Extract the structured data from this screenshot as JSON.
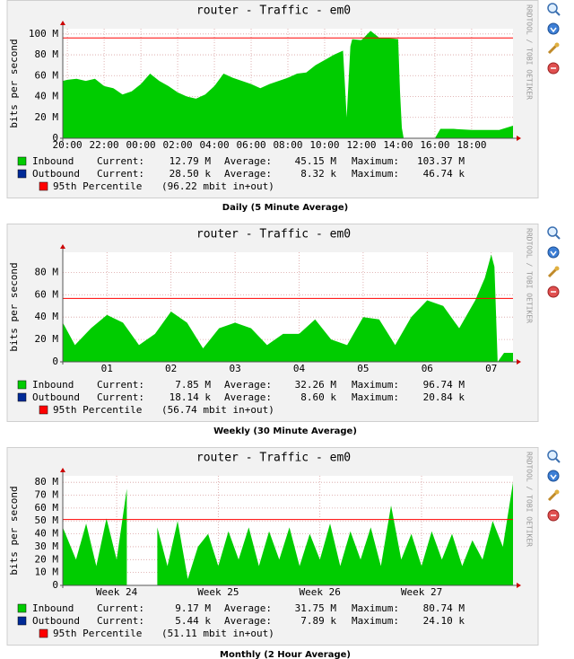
{
  "chart_data": [
    {
      "type": "area",
      "title": "router - Traffic - em0",
      "y_label": "bits per second",
      "watermark": "RRDTOOL / TOBI OETIKER",
      "caption": "Daily (5 Minute Average)",
      "stat_labels": [
        "Current:",
        "Average:",
        "Maximum:"
      ],
      "x": [
        19.75,
        20,
        20.5,
        21,
        21.5,
        22,
        22.5,
        23,
        23.5,
        24,
        24.5,
        25,
        25.5,
        26,
        26.5,
        27,
        27.5,
        28,
        28.5,
        29,
        29.5,
        30,
        30.5,
        31,
        31.5,
        32,
        32.5,
        33,
        33.5,
        34,
        34.5,
        35,
        35.2,
        35.4,
        35.5,
        36,
        36.5,
        37,
        37.5,
        38,
        38.1,
        38.2,
        38.3,
        38.5,
        39,
        40,
        40.3,
        41,
        42,
        43,
        43.5,
        44.25
      ],
      "xlim": [
        19.75,
        44.25
      ],
      "xticks": [
        {
          "value": 20,
          "label": "20:00"
        },
        {
          "value": 22,
          "label": "22:00"
        },
        {
          "value": 24,
          "label": "00:00"
        },
        {
          "value": 26,
          "label": "02:00"
        },
        {
          "value": 28,
          "label": "04:00"
        },
        {
          "value": 30,
          "label": "06:00"
        },
        {
          "value": 32,
          "label": "08:00"
        },
        {
          "value": 34,
          "label": "10:00"
        },
        {
          "value": 36,
          "label": "12:00"
        },
        {
          "value": 38,
          "label": "14:00"
        },
        {
          "value": 40,
          "label": "16:00"
        },
        {
          "value": 42,
          "label": "18:00"
        }
      ],
      "ylim": [
        0,
        105000000
      ],
      "yticks": [
        0,
        {
          "value": 20000000,
          "label": "20 M"
        },
        {
          "value": 40000000,
          "label": "40 M"
        },
        {
          "value": 60000000,
          "label": "60 M"
        },
        {
          "value": 80000000,
          "label": "80 M"
        },
        {
          "value": 100000000,
          "label": "100 M"
        }
      ],
      "grid": true,
      "series": [
        {
          "name": "Inbound",
          "color": "#00cc00",
          "style": "area",
          "stats": [
            "12.79 M",
            "45.15 M",
            "103.37 M"
          ],
          "values": [
            55000000,
            56000000,
            57000000,
            55000000,
            57000000,
            50000000,
            48000000,
            42000000,
            45000000,
            52000000,
            62000000,
            55000000,
            50000000,
            44000000,
            40000000,
            38000000,
            42000000,
            50000000,
            62000000,
            58000000,
            55000000,
            52000000,
            48000000,
            52000000,
            55000000,
            58000000,
            62000000,
            63000000,
            70000000,
            75000000,
            80000000,
            84000000,
            20000000,
            88000000,
            95000000,
            94000000,
            103000000,
            96000000,
            96000000,
            95000000,
            45000000,
            10000000,
            0,
            0,
            0,
            0,
            9000000,
            9000000,
            8000000,
            8000000,
            8000000,
            12000000
          ]
        },
        {
          "name": "Outbound",
          "color": "#002a97",
          "style": "line",
          "stats": [
            "28.50 k",
            "8.32 k",
            "46.74 k"
          ],
          "values": [
            7000,
            7000,
            7000,
            7000,
            7000,
            7000,
            6000,
            6000,
            6000,
            6000,
            6000,
            6000,
            6000,
            5000,
            5000,
            5000,
            5000,
            6000,
            7000,
            7000,
            7000,
            8000,
            8000,
            8000,
            9000,
            9000,
            10000,
            10000,
            11000,
            12000,
            12000,
            13000,
            5000,
            13000,
            14000,
            14000,
            15000,
            15000,
            15000,
            14000,
            8000,
            3000,
            0,
            0,
            0,
            0,
            20000,
            25000,
            28000,
            30000,
            46000,
            28500
          ]
        }
      ],
      "percentile": {
        "name": "95th Percentile",
        "label": "(96.22 mbit in+out)",
        "value": 96220000,
        "color": "#ff0000"
      }
    },
    {
      "type": "area",
      "title": "router - Traffic - em0",
      "y_label": "bits per second",
      "watermark": "RRDTOOL / TOBI OETIKER",
      "caption": "Weekly (30 Minute Average)",
      "stat_labels": [
        "Current:",
        "Average:",
        "Maximum:"
      ],
      "x": [
        0.31,
        0.5,
        0.75,
        1,
        1.25,
        1.5,
        1.75,
        2,
        2.25,
        2.5,
        2.75,
        3,
        3.25,
        3.5,
        3.75,
        4,
        4.25,
        4.5,
        4.75,
        5,
        5.25,
        5.5,
        5.75,
        6,
        6.25,
        6.5,
        6.75,
        6.9,
        7,
        7.05,
        7.1,
        7.2,
        7.34
      ],
      "xlim": [
        0.31,
        7.34
      ],
      "xticks": [
        {
          "value": 1,
          "label": "01"
        },
        {
          "value": 2,
          "label": "02"
        },
        {
          "value": 3,
          "label": "03"
        },
        {
          "value": 4,
          "label": "04"
        },
        {
          "value": 5,
          "label": "05"
        },
        {
          "value": 6,
          "label": "06"
        },
        {
          "value": 7,
          "label": "07"
        }
      ],
      "ylim": [
        0,
        98000000
      ],
      "yticks": [
        0,
        {
          "value": 20000000,
          "label": "20 M"
        },
        {
          "value": 40000000,
          "label": "40 M"
        },
        {
          "value": 60000000,
          "label": "60 M"
        },
        {
          "value": 80000000,
          "label": "80 M"
        }
      ],
      "grid": true,
      "series": [
        {
          "name": "Inbound",
          "color": "#00cc00",
          "style": "area",
          "stats": [
            "7.85 M",
            "32.26 M",
            "96.74 M"
          ],
          "values": [
            35000000,
            15000000,
            30000000,
            42000000,
            35000000,
            15000000,
            25000000,
            45000000,
            35000000,
            12000000,
            30000000,
            35000000,
            30000000,
            15000000,
            25000000,
            25000000,
            38000000,
            20000000,
            15000000,
            40000000,
            38000000,
            15000000,
            40000000,
            55000000,
            50000000,
            30000000,
            55000000,
            75000000,
            96000000,
            85000000,
            0,
            8000000,
            8000000
          ]
        },
        {
          "name": "Outbound",
          "color": "#002a97",
          "style": "line",
          "stats": [
            "18.14 k",
            "8.60 k",
            "20.84 k"
          ],
          "values": [
            9000,
            5000,
            8000,
            11000,
            9000,
            5000,
            7000,
            12000,
            9000,
            4000,
            8000,
            9000,
            8000,
            5000,
            7000,
            7000,
            10000,
            6000,
            5000,
            11000,
            10000,
            5000,
            11000,
            14000,
            13000,
            8000,
            14000,
            19000,
            20000,
            18000,
            0,
            16000,
            18000
          ]
        }
      ],
      "percentile": {
        "name": "95th Percentile",
        "label": "(56.74 mbit in+out)",
        "value": 56740000,
        "color": "#ff0000"
      }
    },
    {
      "type": "area",
      "title": "router - Traffic - em0",
      "y_label": "bits per second",
      "watermark": "RRDTOOL / TOBI OETIKER",
      "caption": "Monthly (2 Hour Average)",
      "stat_labels": [
        "Current:",
        "Average:",
        "Maximum:"
      ],
      "x": [
        23.47,
        23.6,
        23.7,
        23.8,
        23.9,
        24,
        24.1,
        24.2,
        24.3,
        24.4,
        24.5,
        24.6,
        24.7,
        24.8,
        24.9,
        25,
        25.1,
        25.2,
        25.3,
        25.4,
        25.5,
        25.6,
        25.7,
        25.8,
        25.9,
        26,
        26.1,
        26.2,
        26.3,
        26.4,
        26.5,
        26.6,
        26.7,
        26.8,
        26.9,
        27,
        27.1,
        27.2,
        27.3,
        27.4,
        27.5,
        27.6,
        27.7,
        27.8,
        27.9
      ],
      "xlim": [
        23.47,
        27.9
      ],
      "xticks": [
        {
          "value": 24,
          "label": "Week 24"
        },
        {
          "value": 25,
          "label": "Week 25"
        },
        {
          "value": 26,
          "label": "Week 26"
        },
        {
          "value": 27,
          "label": "Week 27"
        }
      ],
      "ylim": [
        0,
        85000000
      ],
      "yticks": [
        0,
        {
          "value": 10000000,
          "label": "10 M"
        },
        {
          "value": 20000000,
          "label": "20 M"
        },
        {
          "value": 30000000,
          "label": "30 M"
        },
        {
          "value": 40000000,
          "label": "40 M"
        },
        {
          "value": 50000000,
          "label": "50 M"
        },
        {
          "value": 60000000,
          "label": "60 M"
        },
        {
          "value": 70000000,
          "label": "70 M"
        },
        {
          "value": 80000000,
          "label": "80 M"
        }
      ],
      "grid": true,
      "series": [
        {
          "name": "Inbound",
          "color": "#00cc00",
          "style": "area",
          "stats": [
            "9.17 M",
            "31.75 M",
            "80.74 M"
          ],
          "values": [
            45000000,
            20000000,
            48000000,
            15000000,
            52000000,
            20000000,
            75000000,
            null,
            null,
            45000000,
            15000000,
            50000000,
            5000000,
            30000000,
            40000000,
            15000000,
            42000000,
            20000000,
            45000000,
            15000000,
            42000000,
            20000000,
            45000000,
            15000000,
            40000000,
            20000000,
            48000000,
            15000000,
            42000000,
            20000000,
            45000000,
            15000000,
            62000000,
            20000000,
            40000000,
            15000000,
            42000000,
            20000000,
            40000000,
            15000000,
            35000000,
            20000000,
            50000000,
            30000000,
            80000000
          ]
        },
        {
          "name": "Outbound",
          "color": "#002a97",
          "style": "line",
          "stats": [
            "5.44 k",
            "7.89 k",
            "24.10 k"
          ],
          "values": [
            8000,
            6000,
            8000,
            5000,
            9000,
            6000,
            12000,
            null,
            null,
            8000,
            5000,
            9000,
            2000,
            7000,
            8000,
            5000,
            8000,
            6000,
            8000,
            5000,
            8000,
            6000,
            8000,
            5000,
            8000,
            6000,
            9000,
            5000,
            8000,
            6000,
            8000,
            5000,
            11000,
            6000,
            8000,
            5000,
            8000,
            6000,
            8000,
            5000,
            7000,
            6000,
            9000,
            7000,
            24000
          ]
        }
      ],
      "percentile": {
        "name": "95th Percentile",
        "label": "(51.11 mbit in+out)",
        "value": 51110000,
        "color": "#ff0000"
      }
    }
  ]
}
